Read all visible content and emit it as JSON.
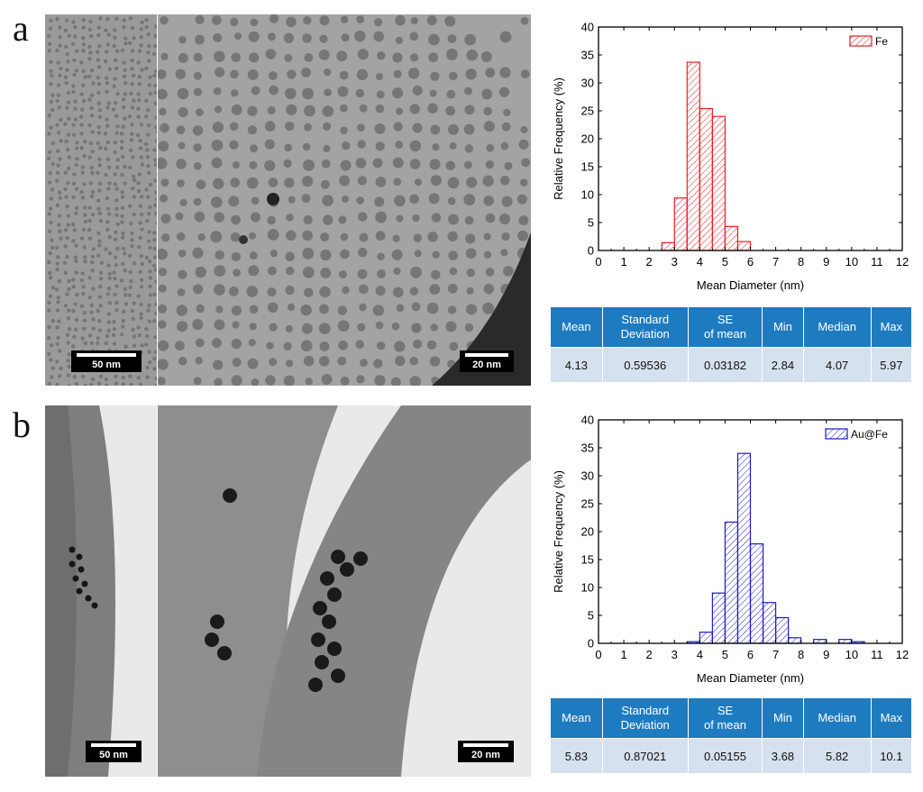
{
  "panels": [
    {
      "letter": "a",
      "scale_left": "50 nm",
      "scale_right": "20 nm",
      "chart_data": {
        "type": "bar",
        "legend": "Fe",
        "color": "#ee1c24",
        "xlabel": "Mean Diameter (nm)",
        "ylabel": "Relative Frequency (%)",
        "xlim": [
          0,
          12
        ],
        "ylim": [
          0,
          40
        ],
        "xticks": [
          0,
          1,
          2,
          3,
          4,
          5,
          6,
          7,
          8,
          9,
          10,
          11,
          12
        ],
        "yticks": [
          0,
          5,
          10,
          15,
          20,
          25,
          30,
          35,
          40
        ],
        "bin_width": 0.5,
        "bins": [
          {
            "x": 2.5,
            "y": 1.4
          },
          {
            "x": 3.0,
            "y": 9.4
          },
          {
            "x": 3.5,
            "y": 33.7
          },
          {
            "x": 4.0,
            "y": 25.4
          },
          {
            "x": 4.5,
            "y": 24.0
          },
          {
            "x": 5.0,
            "y": 4.3
          },
          {
            "x": 5.5,
            "y": 1.6
          }
        ]
      },
      "table": {
        "headers": [
          [
            "Mean"
          ],
          [
            "Standard",
            "Deviation"
          ],
          [
            "SE",
            "of mean"
          ],
          [
            "Min"
          ],
          [
            "Median"
          ],
          [
            "Max"
          ]
        ],
        "values": [
          "4.13",
          "0.59536",
          "0.03182",
          "2.84",
          "4.07",
          "5.97"
        ]
      }
    },
    {
      "letter": "b",
      "scale_left": "50 nm",
      "scale_right": "20 nm",
      "chart_data": {
        "type": "bar",
        "legend": "Au@Fe",
        "color": "#1c1ccc",
        "xlabel": "Mean Diameter (nm)",
        "ylabel": "Relative Frequency (%)",
        "xlim": [
          0,
          12
        ],
        "ylim": [
          0,
          40
        ],
        "xticks": [
          0,
          1,
          2,
          3,
          4,
          5,
          6,
          7,
          8,
          9,
          10,
          11,
          12
        ],
        "yticks": [
          0,
          5,
          10,
          15,
          20,
          25,
          30,
          35,
          40
        ],
        "bin_width": 0.5,
        "bins": [
          {
            "x": 3.5,
            "y": 0.3
          },
          {
            "x": 4.0,
            "y": 2.0
          },
          {
            "x": 4.5,
            "y": 9.0
          },
          {
            "x": 5.0,
            "y": 21.7
          },
          {
            "x": 5.5,
            "y": 34.0
          },
          {
            "x": 6.0,
            "y": 17.8
          },
          {
            "x": 6.5,
            "y": 7.3
          },
          {
            "x": 7.0,
            "y": 4.6
          },
          {
            "x": 7.5,
            "y": 1.0
          },
          {
            "x": 8.5,
            "y": 0.7
          },
          {
            "x": 9.5,
            "y": 0.7
          },
          {
            "x": 10.0,
            "y": 0.3
          }
        ]
      },
      "table": {
        "headers": [
          [
            "Mean"
          ],
          [
            "Standard",
            "Deviation"
          ],
          [
            "SE",
            "of mean"
          ],
          [
            "Min"
          ],
          [
            "Median"
          ],
          [
            "Max"
          ]
        ],
        "values": [
          "5.83",
          "0.87021",
          "0.05155",
          "3.68",
          "5.82",
          "10.1"
        ]
      }
    }
  ]
}
